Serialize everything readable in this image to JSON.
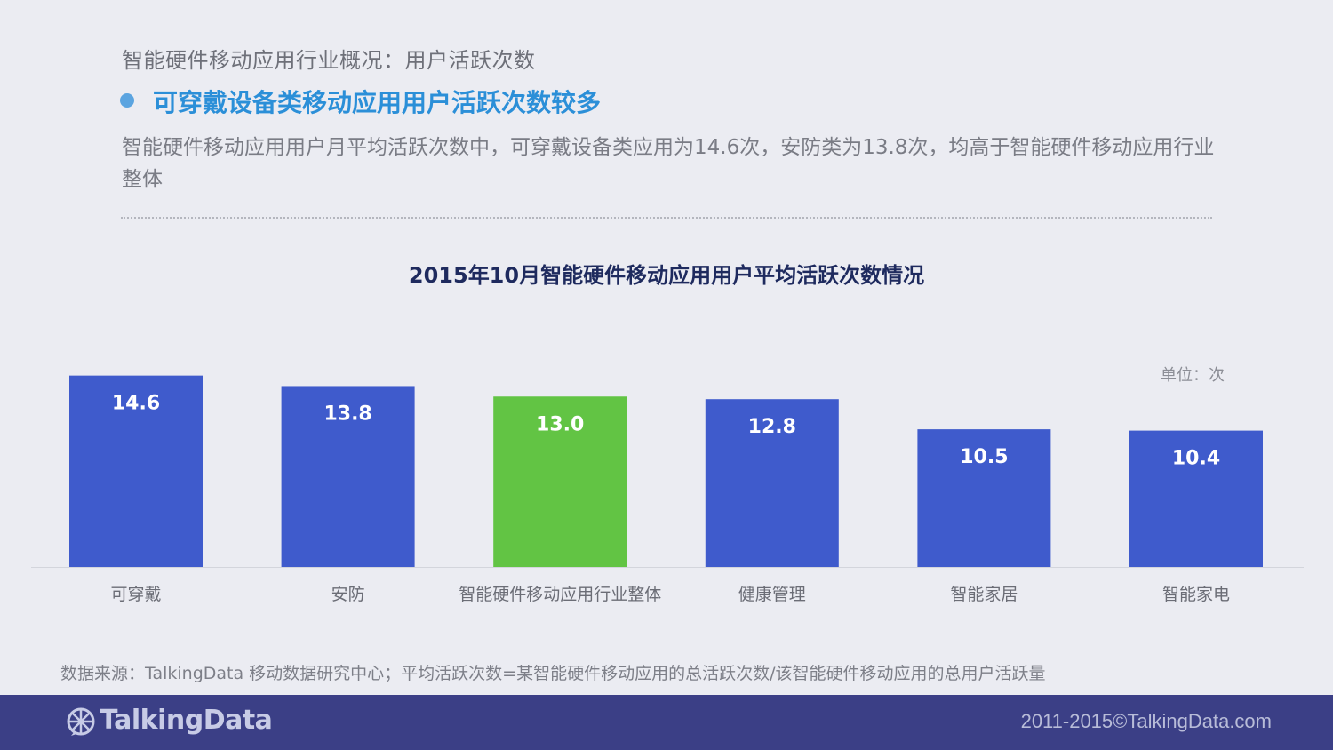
{
  "header": {
    "breadcrumb": "智能硬件移动应用行业概况：用户活跃次数",
    "headline": "可穿戴设备类移动应用用户活跃次数较多",
    "summary": "智能硬件移动应用用户月平均活跃次数中，可穿戴设备类应用为14.6次，安防类为13.8次，均高于智能硬件移动应用行业整体"
  },
  "chart_data": {
    "type": "bar",
    "title": "2015年10月智能硬件移动应用用户平均活跃次数情况",
    "unit": "单位：次",
    "categories": [
      "可穿戴",
      "安防",
      "智能硬件移动应用行业整体",
      "健康管理",
      "智能家居",
      "智能家电"
    ],
    "values": [
      14.6,
      13.8,
      13.0,
      12.8,
      10.5,
      10.4
    ],
    "value_labels": [
      "14.6",
      "13.8",
      "13.0",
      "12.8",
      "10.5",
      "10.4"
    ],
    "bar_colors": [
      "#3f5bcc",
      "#3f5bcc",
      "#62c444",
      "#3f5bcc",
      "#3f5bcc",
      "#3f5bcc"
    ],
    "ylim": [
      0,
      16
    ],
    "grid": false,
    "legend": "none"
  },
  "footer": {
    "source": "数据来源：TalkingData 移动数据研究中心；平均活跃次数=某智能硬件移动应用的总活跃次数/该智能硬件移动应用的总用户活跃量",
    "brand": "TalkingData",
    "copyright": "2011-2015©TalkingData.com",
    "bar_color": "#3b3f86"
  }
}
